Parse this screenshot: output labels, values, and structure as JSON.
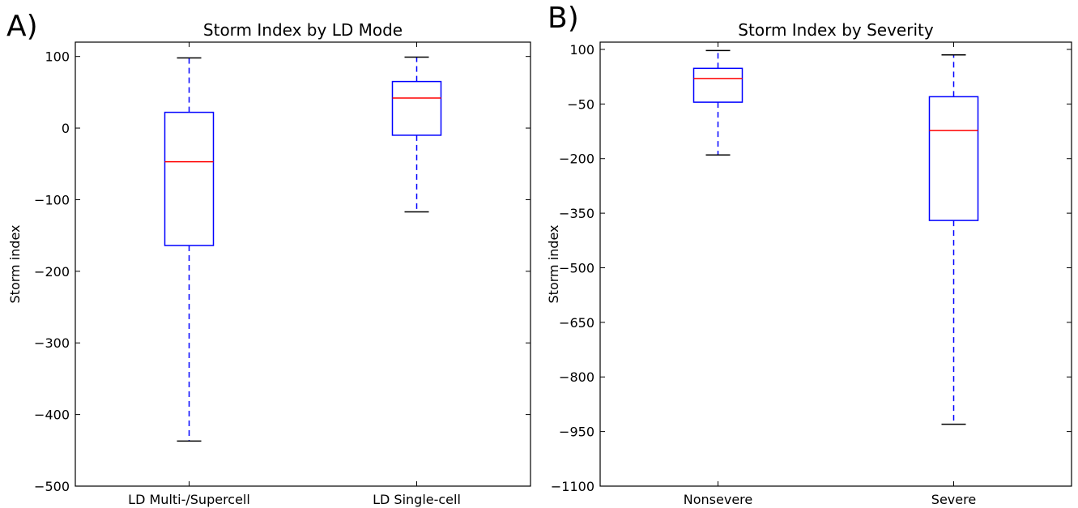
{
  "chart_data": [
    {
      "type": "box",
      "panel_label": "A)",
      "title": "Storm Index by LD Mode",
      "xlabel": "",
      "ylabel": "Storm index",
      "ylim": [
        -500,
        120
      ],
      "yticks": [
        100,
        0,
        -100,
        -200,
        -300,
        -400,
        -500
      ],
      "ytick_labels": [
        "100",
        "0",
        "−100",
        "−200",
        "−300",
        "−400",
        "−500"
      ],
      "categories": [
        "LD Multi-/Supercell",
        "LD Single-cell"
      ],
      "boxes": [
        {
          "whisker_low": -437,
          "q1": -164,
          "median": -47,
          "q3": 22,
          "whisker_high": 98
        },
        {
          "whisker_low": -117,
          "q1": -10,
          "median": 42,
          "q3": 65,
          "whisker_high": 99
        }
      ],
      "colors": {
        "box": "#0000ff",
        "median": "#ff0000",
        "cap": "#000000"
      },
      "grid": false
    },
    {
      "type": "box",
      "panel_label": "B)",
      "title": "Storm Index by Severity",
      "xlabel": "",
      "ylabel": "Storm index",
      "ylim": [
        -1100,
        120
      ],
      "yticks": [
        100,
        -50,
        -200,
        -350,
        -500,
        -650,
        -800,
        -950,
        -1100
      ],
      "ytick_labels": [
        "100",
        "−50",
        "−200",
        "−350",
        "−500",
        "−650",
        "−800",
        "−950",
        "−1100"
      ],
      "categories": [
        "Nonsevere",
        "Severe"
      ],
      "boxes": [
        {
          "whisker_low": -190,
          "q1": -45,
          "median": 20,
          "q3": 48,
          "whisker_high": 97
        },
        {
          "whisker_low": -930,
          "q1": -370,
          "median": -123,
          "q3": -30,
          "whisker_high": 85
        }
      ],
      "colors": {
        "box": "#0000ff",
        "median": "#ff0000",
        "cap": "#000000"
      },
      "grid": false
    }
  ]
}
